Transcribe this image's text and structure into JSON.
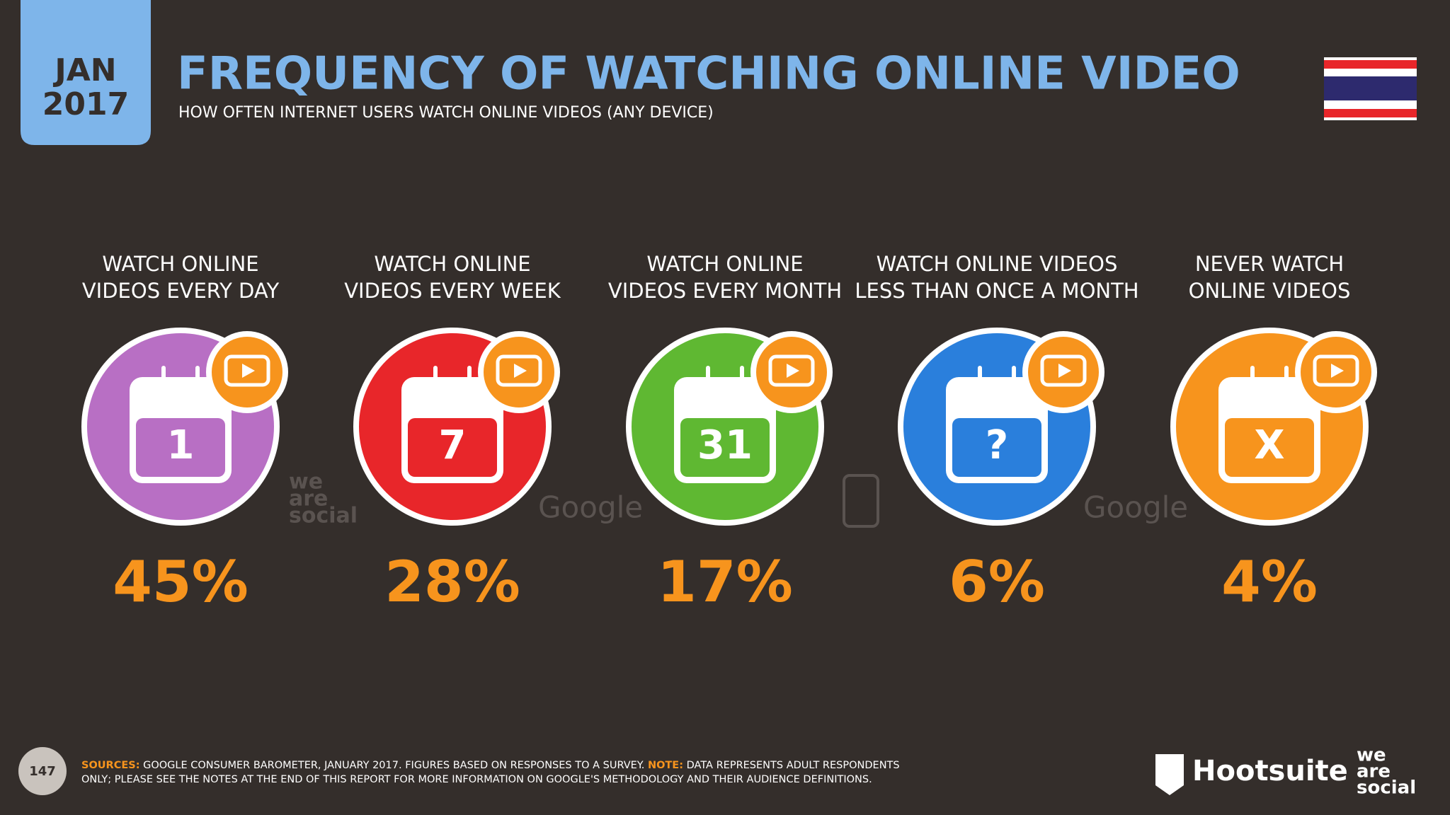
{
  "header": {
    "date_month": "JAN",
    "date_year": "2017",
    "title": "FREQUENCY OF WATCHING ONLINE VIDEO",
    "subtitle": "HOW OFTEN INTERNET USERS WATCH ONLINE VIDEOS (ANY DEVICE)"
  },
  "items": [
    {
      "label_lines": [
        "WATCH ONLINE",
        "VIDEOS EVERY DAY"
      ],
      "icon_text": "1",
      "value": "45%",
      "color": "#b86fc4"
    },
    {
      "label_lines": [
        "WATCH ONLINE",
        "VIDEOS EVERY WEEK"
      ],
      "icon_text": "7",
      "value": "28%",
      "color": "#e8262a"
    },
    {
      "label_lines": [
        "WATCH ONLINE",
        "VIDEOS EVERY MONTH"
      ],
      "icon_text": "31",
      "value": "17%",
      "color": "#5fb832"
    },
    {
      "label_lines": [
        "WATCH ONLINE VIDEOS",
        "LESS THAN ONCE A MONTH"
      ],
      "icon_text": "?",
      "value": "6%",
      "color": "#2a7fdc"
    },
    {
      "label_lines": [
        "NEVER WATCH",
        "ONLINE VIDEOS"
      ],
      "icon_text": "X",
      "value": "4%",
      "color": "#f7941d"
    }
  ],
  "watermarks": [
    "we",
    "are",
    "social",
    "Google",
    "Google"
  ],
  "footer": {
    "page_number": "147",
    "sources_label": "SOURCES:",
    "sources_text": "GOOGLE CONSUMER BAROMETER, JANUARY 2017. FIGURES BASED ON RESPONSES TO A SURVEY.",
    "note_label": "NOTE:",
    "note_text_1": "DATA REPRESENTS ADULT RESPONDENTS",
    "note_text_2": "ONLY; PLEASE SEE THE NOTES AT THE END OF THIS REPORT FOR MORE INFORMATION ON GOOGLE'S METHODOLOGY AND THEIR AUDIENCE DEFINITIONS.",
    "brand": "Hootsuite",
    "brand_2": [
      "we",
      "are",
      "social"
    ]
  }
}
